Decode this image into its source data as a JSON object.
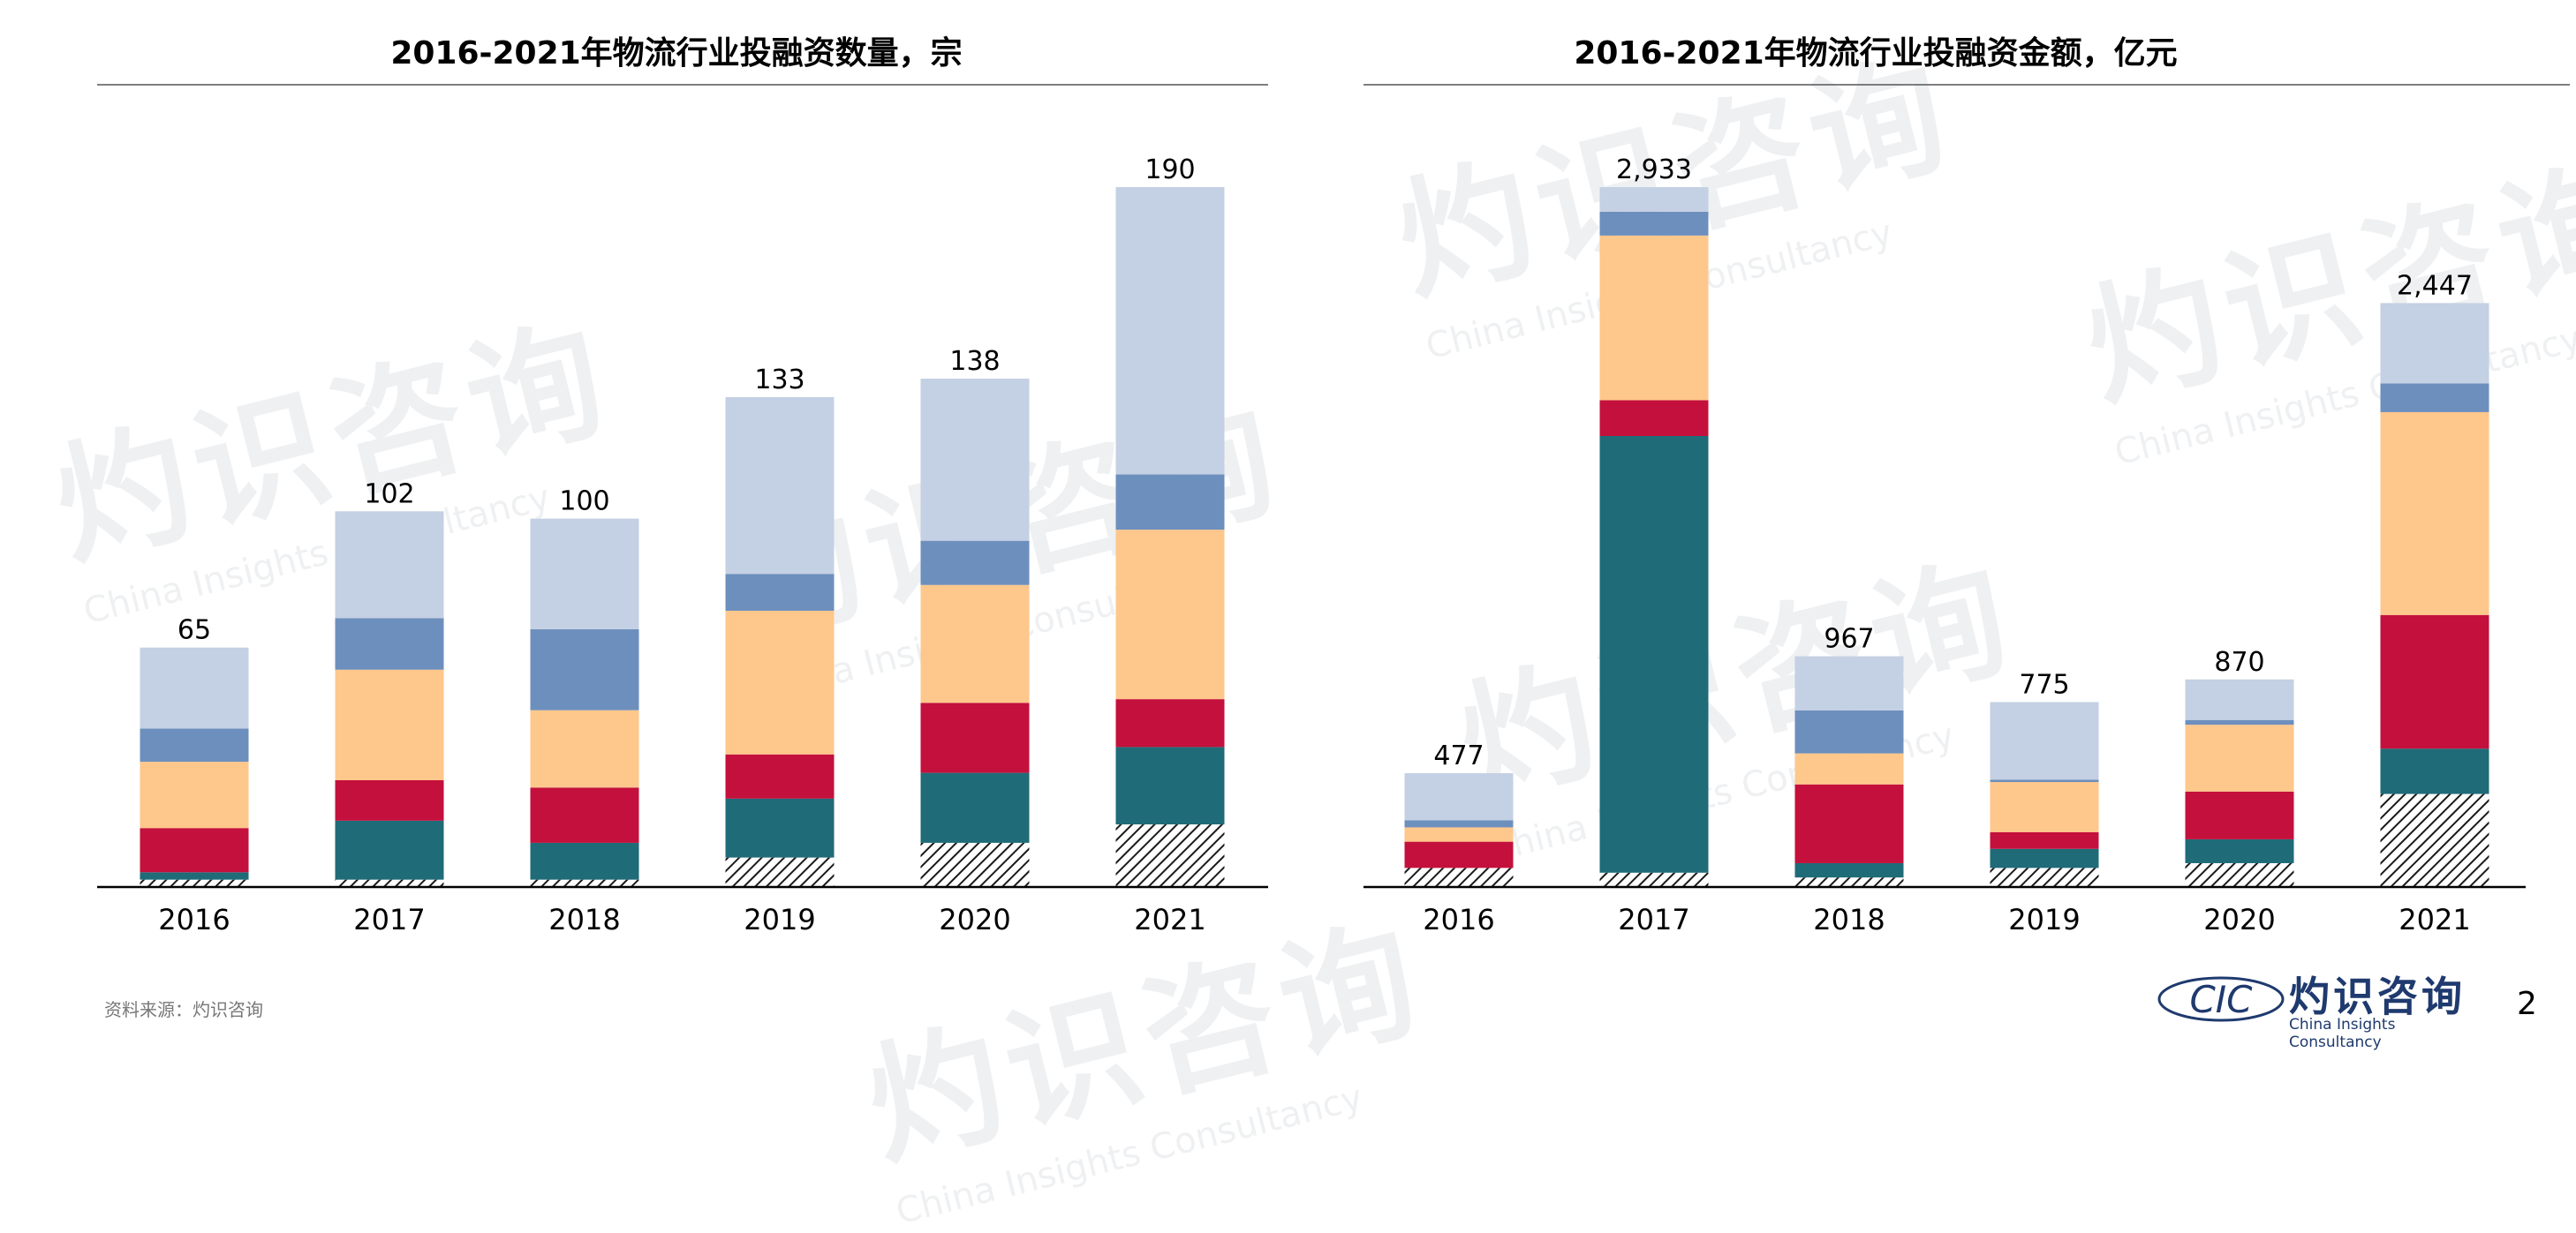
{
  "colors": {
    "hatched": "#1a1a1a",
    "teal": "#1f6b78",
    "red": "#c4103c",
    "orange": "#fec78b",
    "mid_blue": "#6d8fbd",
    "light_blue": "#c4d0e3"
  },
  "chart_data": [
    {
      "type": "bar",
      "stacked": true,
      "title": "2016-2021年物流行业投融资数量，宗",
      "categories": [
        "2016",
        "2017",
        "2018",
        "2019",
        "2020",
        "2021"
      ],
      "totals": [
        65,
        102,
        100,
        133,
        138,
        190
      ],
      "total_labels": [
        "65",
        "102",
        "100",
        "133",
        "138",
        "190"
      ],
      "ylim": [
        0,
        190
      ],
      "segment_colors": [
        "hatched",
        "teal",
        "red",
        "orange",
        "mid_blue",
        "light_blue"
      ],
      "series": [
        {
          "values": [
            2,
            2,
            2,
            8,
            12,
            17
          ]
        },
        {
          "values": [
            2,
            16,
            10,
            16,
            19,
            21
          ]
        },
        {
          "values": [
            12,
            11,
            15,
            12,
            19,
            13
          ]
        },
        {
          "values": [
            18,
            30,
            21,
            39,
            32,
            46
          ]
        },
        {
          "values": [
            9,
            14,
            22,
            10,
            12,
            15
          ]
        },
        {
          "values": [
            22,
            29,
            30,
            48,
            44,
            78
          ]
        }
      ]
    },
    {
      "type": "bar",
      "stacked": true,
      "title": "2016-2021年物流行业投融资金额，亿元",
      "categories": [
        "2016",
        "2017",
        "2018",
        "2019",
        "2020",
        "2021"
      ],
      "totals": [
        477,
        2933,
        967,
        775,
        870,
        2447
      ],
      "total_labels": [
        "477",
        "2,933",
        "967",
        "775",
        "870",
        "2,447"
      ],
      "ylim": [
        0,
        2933
      ],
      "segment_colors": [
        "hatched",
        "teal",
        "red",
        "orange",
        "mid_blue",
        "light_blue"
      ],
      "series": [
        {
          "values": [
            80,
            60,
            40,
            80,
            100,
            390
          ]
        },
        {
          "values": [
            0,
            1830,
            60,
            80,
            100,
            190
          ]
        },
        {
          "values": [
            110,
            150,
            330,
            70,
            200,
            560
          ]
        },
        {
          "values": [
            60,
            690,
            130,
            210,
            280,
            850
          ]
        },
        {
          "values": [
            30,
            100,
            180,
            10,
            20,
            120
          ]
        },
        {
          "values": [
            197,
            103,
            227,
            325,
            170,
            337
          ]
        }
      ]
    }
  ],
  "watermark": {
    "cn": "灼识咨询",
    "en": "China Insights Consultancy"
  },
  "footer": {
    "source": "资料来源：灼识咨询",
    "logo_abbrev": "CIC",
    "logo_cn": "灼识咨询",
    "logo_en": "China Insights Consultancy",
    "page_number": "2"
  }
}
